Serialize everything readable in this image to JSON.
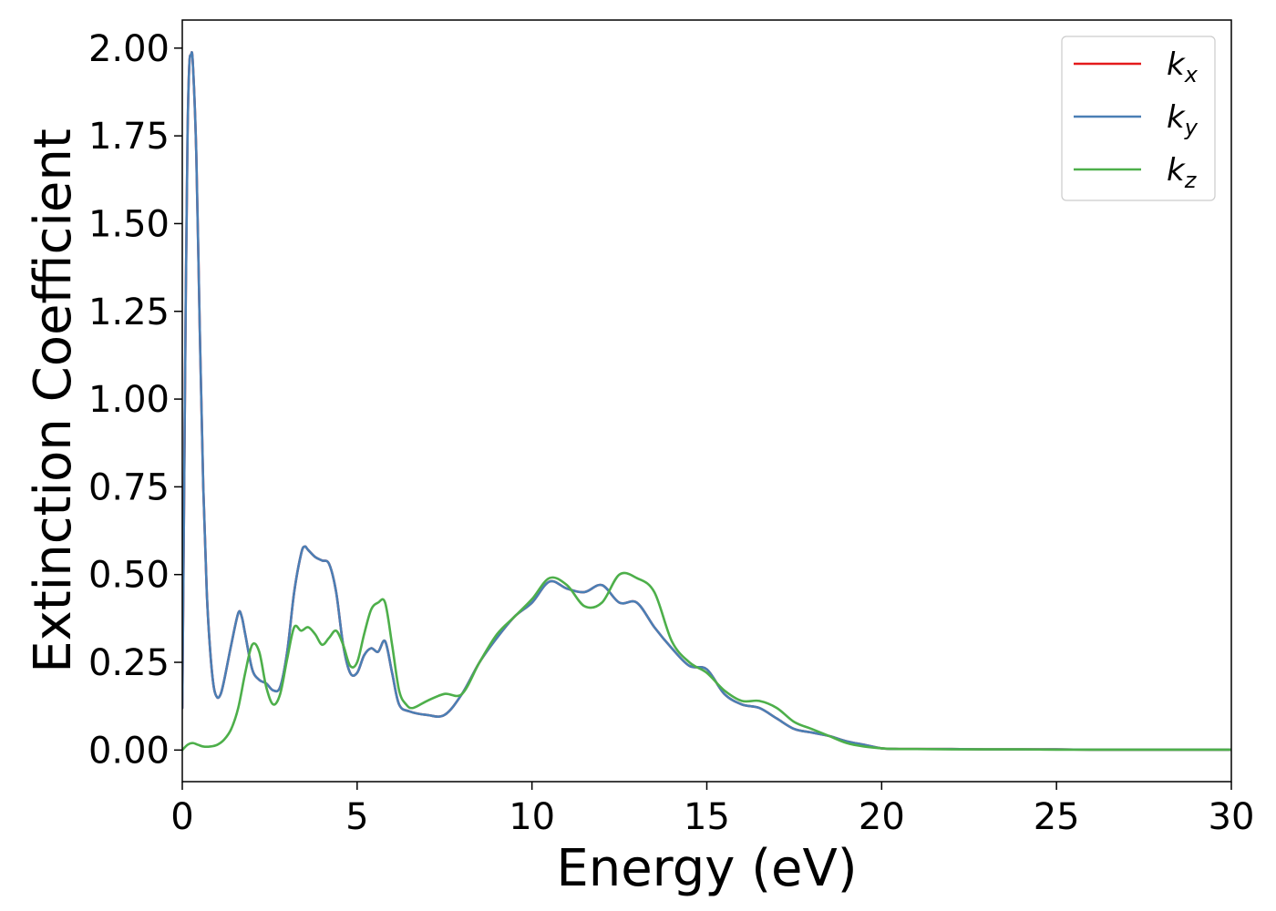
{
  "chart_data": {
    "type": "line",
    "title": "",
    "xlabel": "Energy (eV)",
    "ylabel": "Extinction Coefficient",
    "xlim": [
      0,
      30
    ],
    "ylim": [
      -0.09,
      2.08
    ],
    "xticks": [
      0,
      5,
      10,
      15,
      20,
      25,
      30
    ],
    "xtick_labels": [
      "0",
      "5",
      "10",
      "15",
      "20",
      "25",
      "30"
    ],
    "yticks": [
      0.0,
      0.25,
      0.5,
      0.75,
      1.0,
      1.25,
      1.5,
      1.75,
      2.0
    ],
    "ytick_labels": [
      "0.00",
      "0.25",
      "0.50",
      "0.75",
      "1.00",
      "1.25",
      "1.50",
      "1.75",
      "2.00"
    ],
    "grid": false,
    "legend_position": "top-right",
    "series": [
      {
        "name": "k_x",
        "label_main": "k",
        "label_sub": "x",
        "color": "#e41a1c",
        "x": [
          0,
          0.05,
          0.1,
          0.15,
          0.2,
          0.25,
          0.3,
          0.4,
          0.5,
          0.6,
          0.7,
          0.8,
          0.9,
          1.0,
          1.1,
          1.2,
          1.4,
          1.6,
          1.7,
          1.8,
          2.0,
          2.2,
          2.4,
          2.6,
          2.8,
          3.0,
          3.2,
          3.4,
          3.5,
          3.6,
          3.8,
          4.0,
          4.2,
          4.4,
          4.6,
          4.8,
          5.0,
          5.2,
          5.4,
          5.6,
          5.8,
          6.0,
          6.2,
          6.5,
          7.0,
          7.5,
          8.0,
          8.5,
          9.0,
          9.5,
          10.0,
          10.5,
          11.0,
          11.5,
          12.0,
          12.5,
          13.0,
          13.5,
          14.0,
          14.5,
          15.0,
          15.5,
          16.0,
          16.5,
          17.0,
          17.5,
          18.0,
          18.5,
          19.0,
          19.5,
          20.0,
          20.5,
          21,
          22,
          23,
          24,
          25,
          26,
          27,
          28,
          29,
          30
        ],
        "y": [
          0.12,
          0.7,
          1.3,
          1.75,
          1.95,
          1.98,
          1.96,
          1.7,
          1.2,
          0.75,
          0.45,
          0.28,
          0.18,
          0.15,
          0.16,
          0.2,
          0.3,
          0.39,
          0.38,
          0.33,
          0.23,
          0.2,
          0.19,
          0.17,
          0.18,
          0.28,
          0.45,
          0.56,
          0.58,
          0.57,
          0.55,
          0.54,
          0.53,
          0.45,
          0.3,
          0.22,
          0.22,
          0.27,
          0.29,
          0.28,
          0.31,
          0.22,
          0.13,
          0.11,
          0.1,
          0.1,
          0.16,
          0.25,
          0.32,
          0.38,
          0.42,
          0.48,
          0.46,
          0.45,
          0.47,
          0.42,
          0.42,
          0.35,
          0.29,
          0.24,
          0.23,
          0.16,
          0.13,
          0.12,
          0.09,
          0.06,
          0.05,
          0.04,
          0.025,
          0.015,
          0.005,
          0.003,
          0.003,
          0.003,
          0.002,
          0.002,
          0.002,
          0.001,
          0.001,
          0.001,
          0.001,
          0.001
        ]
      },
      {
        "name": "k_y",
        "label_main": "k",
        "label_sub": "y",
        "color": "#4a7fb5",
        "x": [
          0,
          0.05,
          0.1,
          0.15,
          0.2,
          0.25,
          0.3,
          0.4,
          0.5,
          0.6,
          0.7,
          0.8,
          0.9,
          1.0,
          1.1,
          1.2,
          1.4,
          1.6,
          1.7,
          1.8,
          2.0,
          2.2,
          2.4,
          2.6,
          2.8,
          3.0,
          3.2,
          3.4,
          3.5,
          3.6,
          3.8,
          4.0,
          4.2,
          4.4,
          4.6,
          4.8,
          5.0,
          5.2,
          5.4,
          5.6,
          5.8,
          6.0,
          6.2,
          6.5,
          7.0,
          7.5,
          8.0,
          8.5,
          9.0,
          9.5,
          10.0,
          10.5,
          11.0,
          11.5,
          12.0,
          12.5,
          13.0,
          13.5,
          14.0,
          14.5,
          15.0,
          15.5,
          16.0,
          16.5,
          17.0,
          17.5,
          18.0,
          18.5,
          19.0,
          19.5,
          20.0,
          20.5,
          21,
          22,
          23,
          24,
          25,
          26,
          27,
          28,
          29,
          30
        ],
        "y": [
          0.12,
          0.7,
          1.3,
          1.75,
          1.95,
          1.98,
          1.96,
          1.7,
          1.2,
          0.75,
          0.45,
          0.28,
          0.18,
          0.15,
          0.16,
          0.2,
          0.3,
          0.39,
          0.38,
          0.33,
          0.23,
          0.2,
          0.19,
          0.17,
          0.18,
          0.28,
          0.45,
          0.56,
          0.58,
          0.57,
          0.55,
          0.54,
          0.53,
          0.45,
          0.3,
          0.22,
          0.22,
          0.27,
          0.29,
          0.28,
          0.31,
          0.22,
          0.13,
          0.11,
          0.1,
          0.1,
          0.16,
          0.25,
          0.32,
          0.38,
          0.42,
          0.48,
          0.46,
          0.45,
          0.47,
          0.42,
          0.42,
          0.35,
          0.29,
          0.24,
          0.23,
          0.16,
          0.13,
          0.12,
          0.09,
          0.06,
          0.05,
          0.04,
          0.025,
          0.015,
          0.005,
          0.003,
          0.003,
          0.003,
          0.002,
          0.002,
          0.002,
          0.001,
          0.001,
          0.001,
          0.001,
          0.001
        ]
      },
      {
        "name": "k_z",
        "label_main": "k",
        "label_sub": "z",
        "color": "#4daf4a",
        "x": [
          0,
          0.15,
          0.3,
          0.45,
          0.6,
          0.8,
          1.0,
          1.2,
          1.4,
          1.6,
          1.8,
          2.0,
          2.2,
          2.4,
          2.6,
          2.8,
          3.0,
          3.2,
          3.4,
          3.6,
          3.8,
          4.0,
          4.2,
          4.4,
          4.6,
          4.8,
          5.0,
          5.2,
          5.4,
          5.6,
          5.8,
          6.0,
          6.2,
          6.4,
          6.6,
          7.0,
          7.5,
          8.0,
          8.5,
          9.0,
          9.5,
          10.0,
          10.5,
          11.0,
          11.5,
          12.0,
          12.5,
          13.0,
          13.5,
          14.0,
          14.5,
          15.0,
          15.5,
          16.0,
          16.5,
          17.0,
          17.5,
          18.0,
          18.5,
          19.0,
          19.5,
          20.0,
          20.5,
          21,
          22,
          23,
          24,
          25,
          26,
          27,
          28,
          29,
          30
        ],
        "y": [
          0.0,
          0.015,
          0.02,
          0.015,
          0.01,
          0.01,
          0.015,
          0.03,
          0.06,
          0.12,
          0.22,
          0.3,
          0.28,
          0.18,
          0.13,
          0.16,
          0.26,
          0.35,
          0.34,
          0.35,
          0.33,
          0.3,
          0.32,
          0.34,
          0.3,
          0.24,
          0.25,
          0.33,
          0.4,
          0.42,
          0.42,
          0.3,
          0.17,
          0.13,
          0.12,
          0.14,
          0.16,
          0.16,
          0.25,
          0.33,
          0.38,
          0.43,
          0.49,
          0.47,
          0.41,
          0.42,
          0.5,
          0.49,
          0.45,
          0.31,
          0.25,
          0.22,
          0.17,
          0.14,
          0.14,
          0.12,
          0.08,
          0.06,
          0.04,
          0.02,
          0.01,
          0.005,
          0.003,
          0.003,
          0.002,
          0.002,
          0.002,
          0.001,
          0.001,
          0.001,
          0.001,
          0.001,
          0.001
        ]
      }
    ]
  }
}
